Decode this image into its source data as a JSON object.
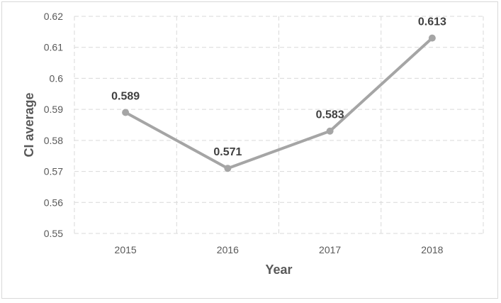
{
  "chart_data": {
    "type": "line",
    "categories": [
      "2015",
      "2016",
      "2017",
      "2018"
    ],
    "values": [
      0.589,
      0.571,
      0.583,
      0.613
    ],
    "data_labels": [
      "0.589",
      "0.571",
      "0.583",
      "0.613"
    ],
    "title": "",
    "xlabel": "Year",
    "ylabel": "CI average",
    "ylim": [
      0.55,
      0.62
    ],
    "yticks": [
      0.55,
      0.56,
      0.57,
      0.58,
      0.59,
      0.6,
      0.61,
      0.62
    ],
    "ytick_labels": [
      "0.55",
      "0.56",
      "0.57",
      "0.58",
      "0.59",
      "0.6",
      "0.61",
      "0.62"
    ],
    "grid": true,
    "legend": "none",
    "line_color": "#a5a5a5",
    "marker_color": "#a5a5a5"
  }
}
